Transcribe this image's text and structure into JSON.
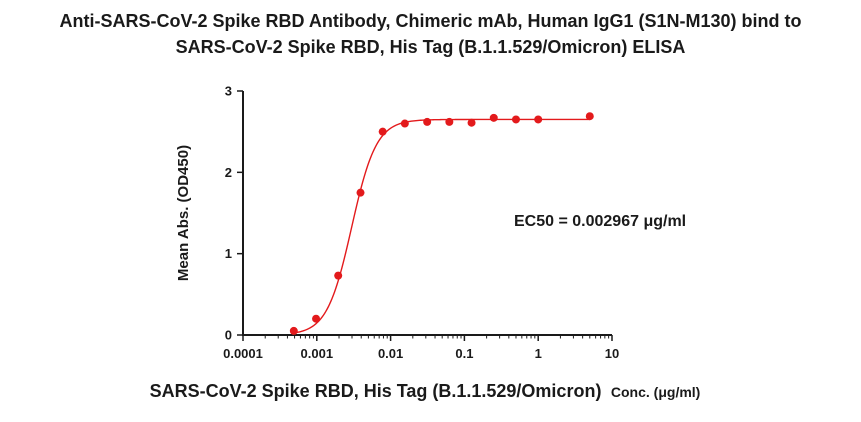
{
  "chart_data": {
    "type": "scatter",
    "title_lines": [
      "Anti-SARS-CoV-2 Spike RBD Antibody, Chimeric mAb, Human IgG1 (S1N-M130) bind to",
      "SARS-CoV-2 Spike RBD, His Tag (B.1.1.529/Omicron) ELISA"
    ],
    "xlabel_main": "SARS-CoV-2 Spike RBD, His Tag (B.1.1.529/Omicron)",
    "xlabel_unit": "Conc. (μg/ml)",
    "ylabel": "Mean Abs. (OD450)",
    "x_scale": "log",
    "xlim": [
      0.0001,
      10
    ],
    "ylim": [
      0,
      3
    ],
    "x_ticks": [
      0.0001,
      0.001,
      0.01,
      0.1,
      1,
      10
    ],
    "x_tick_labels": [
      "0.0001",
      "0.001",
      "0.01",
      "0.1",
      "1",
      "10"
    ],
    "y_ticks": [
      0,
      1,
      2,
      3
    ],
    "y_tick_labels": [
      "0",
      "1",
      "2",
      "3"
    ],
    "grid": false,
    "annotation": "EC50 = 0.002967 μg/ml",
    "series": [
      {
        "x": [
          0.000488,
          0.000977,
          0.00195,
          0.00391,
          0.00781,
          0.0156,
          0.0313,
          0.0625,
          0.125,
          0.25,
          0.5,
          1,
          5
        ],
        "y": [
          0.05,
          0.2,
          0.73,
          1.75,
          2.5,
          2.6,
          2.62,
          2.62,
          2.61,
          2.67,
          2.65,
          2.65,
          2.69
        ],
        "color": "#e31a1c",
        "fit": {
          "model": "4PL",
          "bottom": 0.0,
          "top": 2.65,
          "ec50": 0.002967,
          "hill": 2.6
        }
      }
    ]
  }
}
